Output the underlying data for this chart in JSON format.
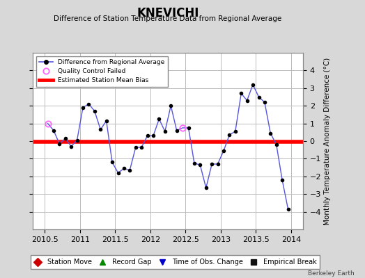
{
  "title": "KNEVICHI",
  "subtitle": "Difference of Station Temperature Data from Regional Average",
  "ylabel": "Monthly Temperature Anomaly Difference (°C)",
  "xlim": [
    2010.33,
    2014.17
  ],
  "ylim": [
    -5,
    5
  ],
  "yticks": [
    -4,
    -3,
    -2,
    -1,
    0,
    1,
    2,
    3,
    4
  ],
  "xticks": [
    2010.5,
    2011,
    2011.5,
    2012,
    2012.5,
    2013,
    2013.5,
    2014
  ],
  "xticklabels": [
    "2010.5",
    "2011",
    "2011.5",
    "2012",
    "2012.5",
    "2013",
    "2013.5",
    "2014"
  ],
  "bias_line": -0.05,
  "line_color": "#5555dd",
  "bias_color": "#ff0000",
  "marker_color": "#000000",
  "qc_fail_color": "#ff66ff",
  "background_color": "#d8d8d8",
  "plot_bg_color": "#ffffff",
  "grid_color": "#bbbbbb",
  "watermark": "Berkeley Earth",
  "times": [
    2010.542,
    2010.625,
    2010.708,
    2010.792,
    2010.875,
    2010.958,
    2011.042,
    2011.125,
    2011.208,
    2011.292,
    2011.375,
    2011.458,
    2011.542,
    2011.625,
    2011.708,
    2011.792,
    2011.875,
    2011.958,
    2012.042,
    2012.125,
    2012.208,
    2012.292,
    2012.375,
    2012.458,
    2012.542,
    2012.625,
    2012.708,
    2012.792,
    2012.875,
    2012.958,
    2013.042,
    2013.125,
    2013.208,
    2013.292,
    2013.375,
    2013.458,
    2013.542,
    2013.625,
    2013.708,
    2013.792,
    2013.875,
    2013.958
  ],
  "values": [
    1.0,
    0.6,
    -0.15,
    0.15,
    -0.3,
    0.05,
    1.9,
    2.1,
    1.7,
    0.65,
    1.15,
    -1.2,
    -1.8,
    -1.55,
    -1.65,
    -0.35,
    -0.35,
    0.3,
    0.3,
    1.25,
    0.55,
    2.0,
    0.6,
    0.75,
    0.75,
    -1.25,
    -1.35,
    -2.65,
    -1.3,
    -1.3,
    -0.55,
    0.35,
    0.55,
    2.7,
    2.3,
    3.2,
    2.5,
    2.2,
    0.45,
    -0.2,
    -2.2,
    -3.85
  ],
  "qc_fail_indices": [
    0,
    23
  ],
  "leg2": [
    {
      "label": "Station Move",
      "color": "#cc0000",
      "marker": "D"
    },
    {
      "label": "Record Gap",
      "color": "#008800",
      "marker": "^"
    },
    {
      "label": "Time of Obs. Change",
      "color": "#0000cc",
      "marker": "v"
    },
    {
      "label": "Empirical Break",
      "color": "#111111",
      "marker": "s"
    }
  ]
}
